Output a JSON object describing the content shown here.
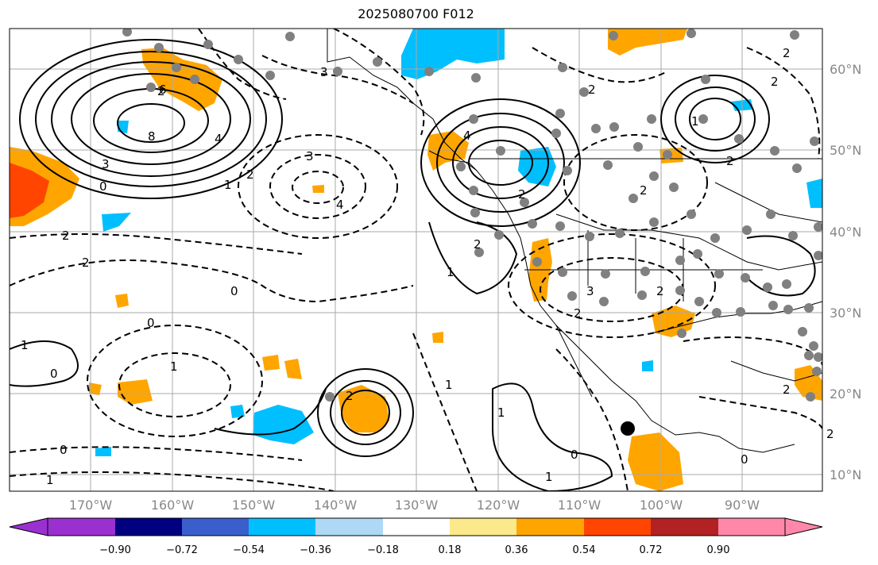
{
  "title": "2025080700 F012",
  "longitude_labels": [
    "170°W",
    "160°W",
    "150°W",
    "140°W",
    "130°W",
    "120°W",
    "110°W",
    "100°W",
    "90°W"
  ],
  "latitude_labels": [
    "60°N",
    "50°N",
    "40°N",
    "30°N",
    "20°N",
    "10°N"
  ],
  "colorbar": {
    "ticks": [
      "−0.90",
      "−0.72",
      "−0.54",
      "−0.36",
      "−0.18",
      "0.18",
      "0.36",
      "0.54",
      "0.72",
      "0.90"
    ],
    "colors": [
      "#9b30d0",
      "#000080",
      "#3a5fcd",
      "#00bfff",
      "#add8f6",
      "#ffffff",
      "#fbe98b",
      "#ffa500",
      "#ff4500",
      "#b22222",
      "#ff88aa"
    ]
  },
  "contour_labels": [
    "2",
    "6",
    "8",
    "4",
    "3",
    "0",
    "2",
    "1",
    "2",
    "3",
    "4",
    "4",
    "2",
    "2",
    "2",
    "2",
    "0",
    "2",
    "1",
    "3",
    "2",
    "0",
    "1",
    "2",
    "2",
    "2",
    "1",
    "0",
    "1",
    "1",
    "0",
    "1",
    "0",
    "2",
    "2",
    "1",
    "0",
    "3",
    "1",
    "2",
    "2"
  ],
  "colors": {
    "land_line": "#000000",
    "grid": "#aaaaaa",
    "station": "#808080",
    "marker": "#000000"
  }
}
